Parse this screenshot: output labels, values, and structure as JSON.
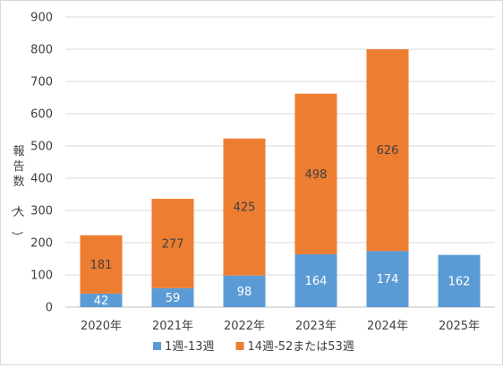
{
  "chart_data": {
    "type": "bar",
    "stacked": true,
    "categories": [
      "2020年",
      "2021年",
      "2022年",
      "2023年",
      "2024年",
      "2025年"
    ],
    "series": [
      {
        "name": "1週-13週",
        "values": [
          42,
          59,
          98,
          164,
          174,
          162
        ],
        "color": "#5b9bd5"
      },
      {
        "name": "14週-52または53週",
        "values": [
          181,
          277,
          425,
          498,
          626,
          null
        ],
        "color": "#ed7d31"
      }
    ],
    "ylabel": "報告数（人）",
    "ylim": [
      0,
      900
    ],
    "yticks": [
      0,
      100,
      200,
      300,
      400,
      500,
      600,
      700,
      800,
      900
    ],
    "grid": true,
    "legend": "bottom"
  }
}
